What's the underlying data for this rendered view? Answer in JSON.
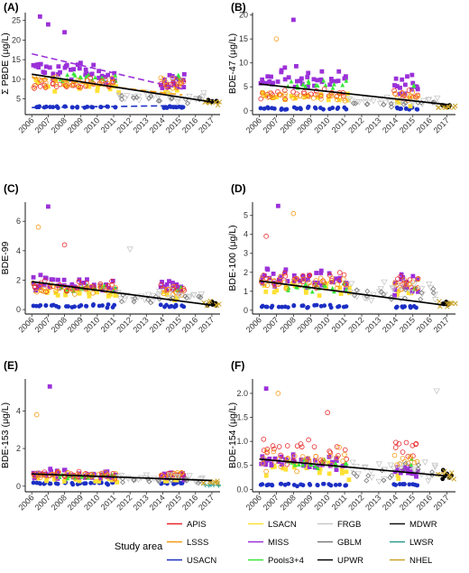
{
  "x_ticks": [
    "2006",
    "2007",
    "2008",
    "2009",
    "2010",
    "2011",
    "2012",
    "2013",
    "2014",
    "2015",
    "2016",
    "2017"
  ],
  "legend": {
    "title": "Study area",
    "items": [
      {
        "name": "APIS",
        "color": "#e8272a"
      },
      {
        "name": "LSACN",
        "color": "#ffe135"
      },
      {
        "name": "FRGB",
        "color": "#c8c8c8"
      },
      {
        "name": "MDWR",
        "color": "#111111"
      },
      {
        "name": "LSSS",
        "color": "#f59a14"
      },
      {
        "name": "MISS",
        "color": "#9b30d9"
      },
      {
        "name": "GBLM",
        "color": "#7a7a7a"
      },
      {
        "name": "LWSR",
        "color": "#2a9d8f"
      },
      {
        "name": "USACN",
        "color": "#1c2fc4"
      },
      {
        "name": "Pools3+4",
        "color": "#39e639"
      },
      {
        "name": "UPWR",
        "color": "#000000"
      },
      {
        "name": "NHEL",
        "color": "#c9a227"
      }
    ]
  },
  "chart_data": [
    {
      "panel": "(A)",
      "type": "scatter",
      "ylabel": "Σ PBDE (μg/L)",
      "yticks": [
        "5",
        "10",
        "15",
        "20",
        "25"
      ],
      "ylim": [
        1,
        27
      ],
      "xlim": [
        2005.6,
        2017.5
      ],
      "series": [
        {
          "name": "USACN",
          "center": 2.9,
          "spread": 0.4
        },
        {
          "name": "LSACN",
          "center": 9.0,
          "spread": 2.2
        },
        {
          "name": "MISS",
          "center": 13.0,
          "spread": 3.5
        },
        {
          "name": "Pools3+4",
          "center": 10.5,
          "spread": 1.5
        },
        {
          "name": "APIS",
          "center": 8.5,
          "spread": 2.0
        },
        {
          "name": "LSSS",
          "center": 9.5,
          "spread": 2.0
        },
        {
          "name": "FRGB",
          "center": 5.5,
          "spread": 1.5
        },
        {
          "name": "GBLM",
          "center": 5.0,
          "spread": 1.5
        },
        {
          "name": "UPWR",
          "center": 4.5,
          "spread": 0.8
        },
        {
          "name": "NHEL",
          "center": 4.0,
          "spread": 1.0
        }
      ],
      "trend_overall": [
        [
          2006,
          11.3
        ],
        [
          2017,
          4.2
        ]
      ],
      "trend_series": [
        {
          "name": "MISS",
          "points": [
            [
              2006,
              16.5
            ],
            [
              2015.2,
              7.5
            ]
          ]
        },
        {
          "name": "LSSS",
          "points": [
            [
              2006,
              10.5
            ],
            [
              2015.2,
              6.0
            ]
          ]
        },
        {
          "name": "USACN",
          "points": [
            [
              2006,
              2.8
            ],
            [
              2015.2,
              3.3
            ]
          ]
        }
      ],
      "highlights": [
        {
          "x": 2006.5,
          "y": 26.0
        },
        {
          "x": 2007.0,
          "y": 24.0
        },
        {
          "x": 2008.0,
          "y": 22.0
        }
      ]
    },
    {
      "panel": "(B)",
      "type": "scatter",
      "ylabel": "BDE-47 (μg/L)",
      "yticks": [
        "0",
        "5",
        "10",
        "15",
        "20"
      ],
      "ylim": [
        -0.8,
        20.5
      ],
      "xlim": [
        2005.6,
        2017.5
      ],
      "series": [
        {
          "name": "USACN",
          "center": 0.5,
          "spread": 0.4
        },
        {
          "name": "LSACN",
          "center": 3.0,
          "spread": 1.5
        },
        {
          "name": "MISS",
          "center": 7.0,
          "spread": 3.5
        },
        {
          "name": "Pools3+4",
          "center": 5.5,
          "spread": 1.5
        },
        {
          "name": "APIS",
          "center": 3.5,
          "spread": 1.5
        },
        {
          "name": "LSSS",
          "center": 3.0,
          "spread": 1.5
        },
        {
          "name": "FRGB",
          "center": 2.0,
          "spread": 1.2
        },
        {
          "name": "GBLM",
          "center": 1.5,
          "spread": 1.0
        },
        {
          "name": "UPWR",
          "center": 1.0,
          "spread": 0.5
        },
        {
          "name": "NHEL",
          "center": 0.8,
          "spread": 0.5
        }
      ],
      "trend_overall": [
        [
          2006,
          5.6
        ],
        [
          2017,
          1.3
        ]
      ],
      "highlights": [
        {
          "x": 2008.0,
          "y": 19.0
        },
        {
          "x": 2007.0,
          "y": 15.0
        }
      ]
    },
    {
      "panel": "(C)",
      "type": "scatter",
      "ylabel": "BDE-99",
      "yticks": [
        "0",
        "2",
        "4",
        "6"
      ],
      "ylim": [
        -0.3,
        7.3
      ],
      "xlim": [
        2005.6,
        2017.5
      ],
      "series": [
        {
          "name": "USACN",
          "center": 0.25,
          "spread": 0.15
        },
        {
          "name": "LSACN",
          "center": 1.2,
          "spread": 0.5
        },
        {
          "name": "MISS",
          "center": 1.8,
          "spread": 0.8
        },
        {
          "name": "Pools3+4",
          "center": 1.4,
          "spread": 0.4
        },
        {
          "name": "APIS",
          "center": 1.5,
          "spread": 0.6
        },
        {
          "name": "LSSS",
          "center": 1.3,
          "spread": 0.6
        },
        {
          "name": "FRGB",
          "center": 0.9,
          "spread": 0.6
        },
        {
          "name": "GBLM",
          "center": 0.7,
          "spread": 0.5
        },
        {
          "name": "UPWR",
          "center": 0.4,
          "spread": 0.2
        },
        {
          "name": "NHEL",
          "center": 0.4,
          "spread": 0.3
        }
      ],
      "trend_overall": [
        [
          2006,
          1.9
        ],
        [
          2017,
          0.3
        ]
      ],
      "highlights": [
        {
          "x": 2007.0,
          "y": 7.0
        },
        {
          "x": 2006.4,
          "y": 5.6
        },
        {
          "x": 2008.0,
          "y": 4.4
        },
        {
          "x": 2012.0,
          "y": 4.1
        }
      ]
    },
    {
      "panel": "(D)",
      "type": "scatter",
      "ylabel": "BDE-100 (μg/L)",
      "yticks": [
        "0",
        "1",
        "2",
        "3",
        "4",
        "5"
      ],
      "ylim": [
        -0.2,
        5.7
      ],
      "xlim": [
        2005.6,
        2017.5
      ],
      "series": [
        {
          "name": "USACN",
          "center": 0.2,
          "spread": 0.12
        },
        {
          "name": "LSACN",
          "center": 1.2,
          "spread": 0.5
        },
        {
          "name": "MISS",
          "center": 1.8,
          "spread": 0.8
        },
        {
          "name": "Pools3+4",
          "center": 1.2,
          "spread": 0.4
        },
        {
          "name": "APIS",
          "center": 1.6,
          "spread": 0.7
        },
        {
          "name": "LSSS",
          "center": 1.5,
          "spread": 0.6
        },
        {
          "name": "FRGB",
          "center": 1.0,
          "spread": 0.6
        },
        {
          "name": "GBLM",
          "center": 0.8,
          "spread": 0.5
        },
        {
          "name": "UPWR",
          "center": 0.4,
          "spread": 0.2
        },
        {
          "name": "NHEL",
          "center": 0.3,
          "spread": 0.25
        }
      ],
      "trend_overall": [
        [
          2006,
          1.55
        ],
        [
          2017,
          0.25
        ]
      ],
      "highlights": [
        {
          "x": 2007.1,
          "y": 5.5
        },
        {
          "x": 2008.0,
          "y": 5.1
        },
        {
          "x": 2006.4,
          "y": 3.9
        }
      ]
    },
    {
      "panel": "(E)",
      "type": "scatter",
      "ylabel": "BDE-153 (μg/L)",
      "yticks": [
        "0",
        "2",
        "4"
      ],
      "ylim": [
        -0.3,
        5.7
      ],
      "xlim": [
        2005.6,
        2017.5
      ],
      "series": [
        {
          "name": "USACN",
          "center": 0.15,
          "spread": 0.1
        },
        {
          "name": "LSACN",
          "center": 0.4,
          "spread": 0.25
        },
        {
          "name": "MISS",
          "center": 0.7,
          "spread": 0.4
        },
        {
          "name": "Pools3+4",
          "center": 0.5,
          "spread": 0.2
        },
        {
          "name": "APIS",
          "center": 0.6,
          "spread": 0.3
        },
        {
          "name": "LSSS",
          "center": 0.6,
          "spread": 0.3
        },
        {
          "name": "FRGB",
          "center": 0.4,
          "spread": 0.3
        },
        {
          "name": "GBLM",
          "center": 0.3,
          "spread": 0.25
        },
        {
          "name": "LWSR",
          "center": 0.05,
          "spread": 0.05
        },
        {
          "name": "NHEL",
          "center": 0.2,
          "spread": 0.15
        }
      ],
      "trend_overall": [
        [
          2006,
          0.65
        ],
        [
          2017,
          0.3
        ]
      ],
      "highlights": [
        {
          "x": 2007.1,
          "y": 5.3
        },
        {
          "x": 2006.3,
          "y": 3.8
        }
      ]
    },
    {
      "panel": "(F)",
      "type": "scatter",
      "ylabel": "BDE-154 (μg/L)",
      "yticks": [
        "0.0",
        "0.5",
        "1.0",
        "1.5",
        "2.0"
      ],
      "ylim": [
        -0.05,
        2.3
      ],
      "xlim": [
        2005.6,
        2017.5
      ],
      "series": [
        {
          "name": "USACN",
          "center": 0.1,
          "spread": 0.04
        },
        {
          "name": "LSACN",
          "center": 0.45,
          "spread": 0.2
        },
        {
          "name": "MISS",
          "center": 0.6,
          "spread": 0.25
        },
        {
          "name": "Pools3+4",
          "center": 0.55,
          "spread": 0.15
        },
        {
          "name": "APIS",
          "center": 0.8,
          "spread": 0.4
        },
        {
          "name": "LSSS",
          "center": 0.6,
          "spread": 0.3
        },
        {
          "name": "FRGB",
          "center": 0.4,
          "spread": 0.3
        },
        {
          "name": "GBLM",
          "center": 0.35,
          "spread": 0.25
        },
        {
          "name": "UPWR",
          "center": 0.3,
          "spread": 0.2
        },
        {
          "name": "NHEL",
          "center": 0.3,
          "spread": 0.25
        }
      ],
      "trend_overall": [
        [
          2006,
          0.63
        ],
        [
          2017,
          0.28
        ]
      ],
      "highlights": [
        {
          "x": 2006.4,
          "y": 2.1
        },
        {
          "x": 2007.1,
          "y": 2.0
        },
        {
          "x": 2010.0,
          "y": 1.6
        },
        {
          "x": 2016.4,
          "y": 2.05
        }
      ]
    }
  ]
}
